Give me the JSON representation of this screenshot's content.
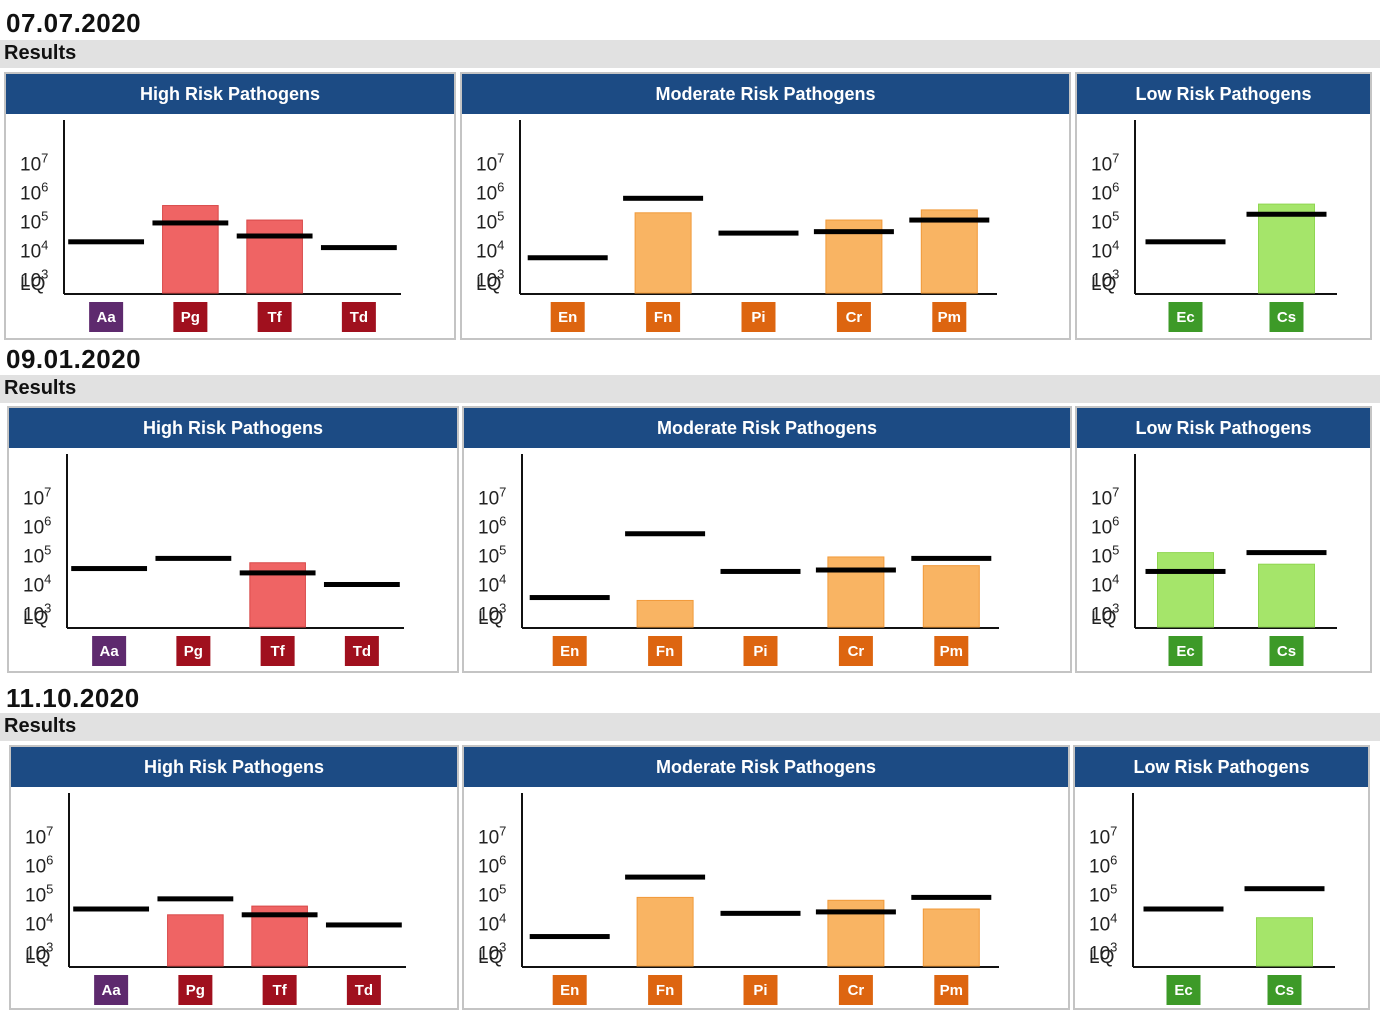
{
  "sections": [
    {
      "date": "07.07.2020",
      "results_label": "Results",
      "panels": [
        {
          "title": "High Risk Pathogens",
          "risk": "high",
          "pathogens": [
            {
              "code": "Aa",
              "value": 0,
              "threshold": 4.3
            },
            {
              "code": "Pg",
              "value": 5.55,
              "threshold": 4.95
            },
            {
              "code": "Tf",
              "value": 5.05,
              "threshold": 4.5
            },
            {
              "code": "Td",
              "value": 0,
              "threshold": 4.1
            }
          ]
        },
        {
          "title": "Moderate Risk Pathogens",
          "risk": "moderate",
          "pathogens": [
            {
              "code": "En",
              "value": 0,
              "threshold": 3.75
            },
            {
              "code": "Fn",
              "value": 5.3,
              "threshold": 5.8
            },
            {
              "code": "Pi",
              "value": 0,
              "threshold": 4.6
            },
            {
              "code": "Cr",
              "value": 5.05,
              "threshold": 4.65
            },
            {
              "code": "Pm",
              "value": 5.4,
              "threshold": 5.05
            }
          ]
        },
        {
          "title": "Low Risk Pathogens",
          "risk": "low",
          "pathogens": [
            {
              "code": "Ec",
              "value": 0,
              "threshold": 4.3
            },
            {
              "code": "Cs",
              "value": 5.6,
              "threshold": 5.25
            }
          ]
        }
      ]
    },
    {
      "date": "09.01.2020",
      "results_label": "Results",
      "panels": [
        {
          "title": "High Risk Pathogens",
          "risk": "high",
          "pathogens": [
            {
              "code": "Aa",
              "value": 0,
              "threshold": 4.55
            },
            {
              "code": "Pg",
              "value": 0,
              "threshold": 4.9
            },
            {
              "code": "Tf",
              "value": 4.75,
              "threshold": 4.4
            },
            {
              "code": "Td",
              "value": 0,
              "threshold": 4.0
            }
          ]
        },
        {
          "title": "Moderate Risk Pathogens",
          "risk": "moderate",
          "pathogens": [
            {
              "code": "En",
              "value": 0,
              "threshold": 3.55
            },
            {
              "code": "Fn",
              "value": 3.45,
              "threshold": 5.75
            },
            {
              "code": "Pi",
              "value": 0,
              "threshold": 4.45
            },
            {
              "code": "Cr",
              "value": 4.95,
              "threshold": 4.5
            },
            {
              "code": "Pm",
              "value": 4.65,
              "threshold": 4.9
            }
          ]
        },
        {
          "title": "Low Risk Pathogens",
          "risk": "low",
          "pathogens": [
            {
              "code": "Ec",
              "value": 5.1,
              "threshold": 4.45
            },
            {
              "code": "Cs",
              "value": 4.7,
              "threshold": 5.1
            }
          ]
        }
      ]
    },
    {
      "date": "11.10.2020",
      "results_label": "Results",
      "panels": [
        {
          "title": "High Risk Pathogens",
          "risk": "high",
          "pathogens": [
            {
              "code": "Aa",
              "value": 0,
              "threshold": 4.5
            },
            {
              "code": "Pg",
              "value": 4.3,
              "threshold": 4.85
            },
            {
              "code": "Tf",
              "value": 4.6,
              "threshold": 4.3
            },
            {
              "code": "Td",
              "value": 0,
              "threshold": 3.95
            }
          ]
        },
        {
          "title": "Moderate Risk Pathogens",
          "risk": "moderate",
          "pathogens": [
            {
              "code": "En",
              "value": 0,
              "threshold": 3.55
            },
            {
              "code": "Fn",
              "value": 4.9,
              "threshold": 5.6
            },
            {
              "code": "Pi",
              "value": 0,
              "threshold": 4.35
            },
            {
              "code": "Cr",
              "value": 4.8,
              "threshold": 4.4
            },
            {
              "code": "Pm",
              "value": 4.5,
              "threshold": 4.9
            }
          ]
        },
        {
          "title": "Low Risk Pathogens",
          "risk": "low",
          "pathogens": [
            {
              "code": "Ec",
              "value": 0,
              "threshold": 4.5
            },
            {
              "code": "Cs",
              "value": 4.2,
              "threshold": 5.2
            }
          ]
        }
      ]
    }
  ],
  "chart_data": {
    "type": "bar",
    "y_scale": "log",
    "y_tick_labels": [
      "LQ",
      "10^3",
      "10^4",
      "10^5",
      "10^6",
      "10^7"
    ],
    "y_ticks": [
      {
        "base": "10",
        "exp": "7"
      },
      {
        "base": "10",
        "exp": "6"
      },
      {
        "base": "10",
        "exp": "5"
      },
      {
        "base": "10",
        "exp": "4"
      },
      {
        "base": "10",
        "exp": "3"
      }
    ],
    "y_lq_label": "LQ",
    "grid": false,
    "legend": "none",
    "series_note": "bars = measured log10 count, black line = threshold log10 count"
  },
  "colors": {
    "header": "#1c4b84",
    "high_bar": "#ef6464",
    "high_bar_edge": "#d84848",
    "high_label": "#a0101e",
    "high_label_aa": "#5e2a6e",
    "moderate_bar": "#f9b463",
    "moderate_bar_edge": "#f19a3a",
    "moderate_label": "#dd6510",
    "low_bar": "#a5e56a",
    "low_bar_edge": "#8fd651",
    "low_label": "#3d9a28"
  }
}
